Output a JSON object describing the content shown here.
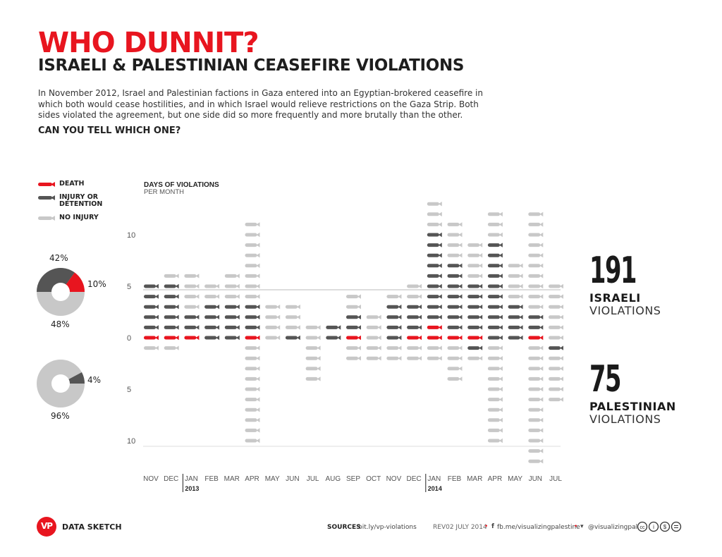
{
  "header": {
    "title": "WHO DUNNIT?",
    "subtitle": "ISRAELI & PALESTINIAN CEASEFIRE VIOLATIONS",
    "intro": "In November 2012, Israel and Palestinian factions in Gaza entered into an Egyptian-brokered ceasefire in which both would cease hostilities, and in which Israel would relieve restrictions on the Gaza Strip.  Both sides violated the agreement, but one side did so more frequently and more brutally than the other.",
    "question": "CAN YOU TELL WHICH ONE?"
  },
  "legend": [
    {
      "label": "DEATH",
      "color": "#e8151f"
    },
    {
      "label": "INJURY OR DETENTION",
      "color": "#555555"
    },
    {
      "label": "NO INJURY",
      "color": "#c8c8c8"
    }
  ],
  "pies": {
    "israeli": {
      "death": "10%",
      "injury": "42%",
      "none": "48%"
    },
    "palestinian": {
      "injury": "4%",
      "none": "96%"
    }
  },
  "totals": {
    "israeli": {
      "value": "191",
      "line1": "ISRAELI",
      "line2": "VIOLATIONS"
    },
    "palestinian": {
      "value": "75",
      "line1": "PALESTINIAN",
      "line2": "VIOLATIONS"
    }
  },
  "chart_data": {
    "type": "bar",
    "title": "DAYS OF VIOLATIONS",
    "subtitle": "PER MONTH",
    "categories": [
      "NOV",
      "DEC",
      "JAN",
      "FEB",
      "MAR",
      "APR",
      "MAY",
      "JUN",
      "JUL",
      "AUG",
      "SEP",
      "OCT",
      "NOV",
      "DEC",
      "JAN",
      "FEB",
      "MAR",
      "APR",
      "MAY",
      "JUN",
      "JUL"
    ],
    "year_labels": [
      {
        "index": 2,
        "label": "2013"
      },
      {
        "index": 14,
        "label": "2014"
      }
    ],
    "y_ticks_up": [
      "10",
      "5",
      "0"
    ],
    "y_ticks_down": [
      "5",
      "10"
    ],
    "ylim": [
      -10,
      16
    ],
    "colors": {
      "death": "#e8151f",
      "injury": "#555555",
      "none": "#c8c8c8"
    },
    "series_above_note": "Israeli violations stacked upward from 0",
    "israeli": {
      "death": [
        1,
        1,
        1,
        0,
        0,
        1,
        0,
        0,
        0,
        0,
        1,
        0,
        0,
        1,
        2,
        1,
        1,
        0,
        0,
        1,
        0
      ],
      "injury": [
        5,
        5,
        2,
        4,
        4,
        3,
        0,
        1,
        0,
        2,
        2,
        0,
        4,
        3,
        9,
        7,
        5,
        10,
        4,
        2,
        0
      ],
      "none": [
        0,
        1,
        4,
        2,
        3,
        8,
        4,
        3,
        2,
        0,
        2,
        3,
        1,
        2,
        3,
        4,
        4,
        3,
        4,
        10,
        6
      ]
    },
    "palestinian": {
      "death": [
        0,
        0,
        0,
        0,
        0,
        0,
        0,
        0,
        0,
        0,
        0,
        0,
        0,
        0,
        0,
        0,
        0,
        0,
        0,
        0,
        0
      ],
      "injury": [
        0,
        0,
        0,
        0,
        0,
        0,
        0,
        0,
        0,
        0,
        0,
        0,
        0,
        0,
        0,
        0,
        1,
        0,
        0,
        0,
        1
      ],
      "none": [
        1,
        1,
        0,
        0,
        0,
        10,
        0,
        0,
        4,
        0,
        2,
        2,
        2,
        2,
        2,
        4,
        1,
        10,
        0,
        12,
        5
      ]
    }
  },
  "footer": {
    "brand_logo": "VP",
    "brand": "DATA SKETCH",
    "sources_label": "SOURCES",
    "sources_value": "bit.ly/vp-violations",
    "rev": "REV02  JULY 2014",
    "fb": "fb.me/visualizingpalestine",
    "tw": "@visualizingpal"
  }
}
